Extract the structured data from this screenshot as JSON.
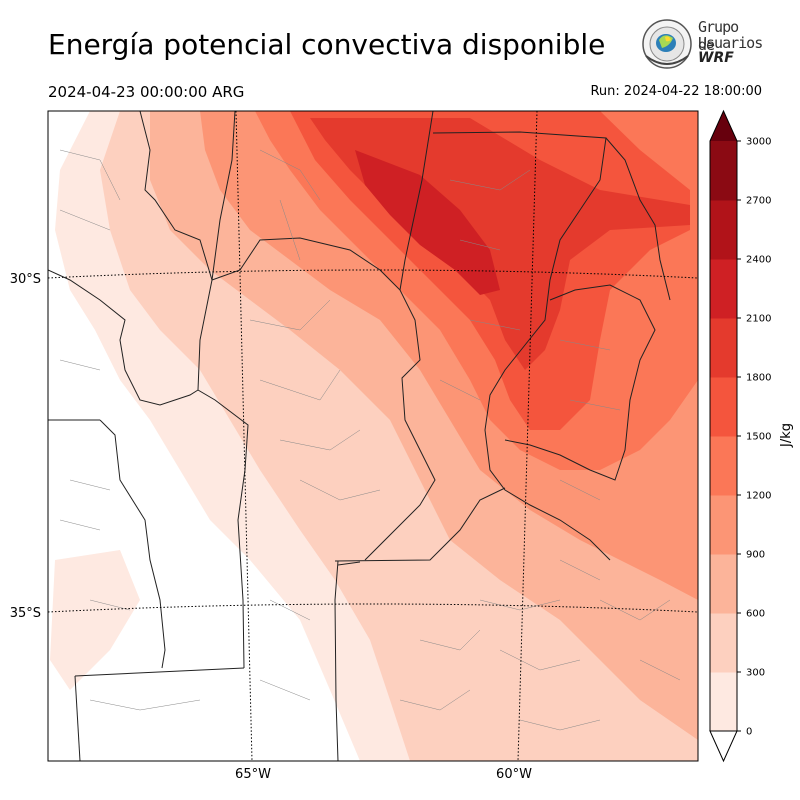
{
  "title": "Energía potencial convectiva disponible",
  "valid_time": "2024-04-23 00:00:00 ARG",
  "run_time": "Run: 2024-04-22 18:00:00",
  "logo": {
    "line1": "Grupo de",
    "line2": "Usuarios",
    "line3": "WRF"
  },
  "lat_labels": [
    "30°S",
    "35°S"
  ],
  "lon_labels": [
    "65°W",
    "60°W"
  ],
  "colorbar": {
    "unit": "J/kg",
    "levels": [
      0,
      300,
      600,
      900,
      1200,
      1500,
      1800,
      2100,
      2400,
      2700,
      3000
    ],
    "colors": [
      "#fee9e1",
      "#fdd0bf",
      "#fcb49a",
      "#fc9575",
      "#fb7757",
      "#f4553d",
      "#e43a2d",
      "#cf2024",
      "#b11319",
      "#8b0a13"
    ],
    "extend_color": "#67000d"
  },
  "field_colors": {
    "c0": "#fee9e1",
    "c1": "#fdd0bf",
    "c2": "#fcb49a",
    "c3": "#fc9575",
    "c4": "#fb7757",
    "c5": "#f4553d",
    "c6": "#e43a2d",
    "c7": "#cf2024"
  }
}
